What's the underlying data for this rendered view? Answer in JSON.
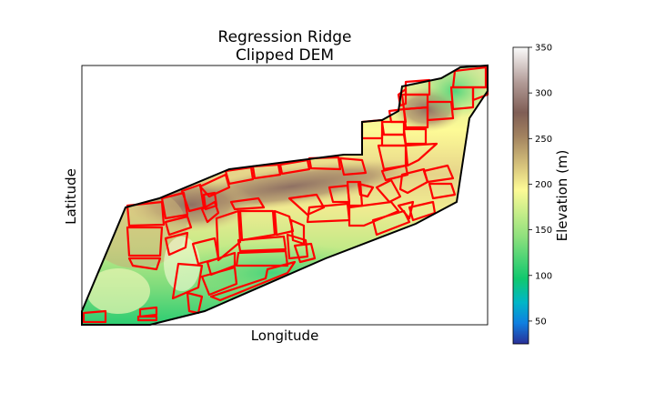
{
  "chart_data": {
    "type": "heatmap",
    "title": "Regression Ridge",
    "subtitle": "Clipped DEM",
    "xlabel": "Longitude",
    "ylabel": "Latitude",
    "colorbar": {
      "label": "Elevation (m)",
      "range": [
        25,
        350
      ],
      "ticks": [
        50,
        100,
        150,
        200,
        250,
        300,
        350
      ],
      "colormap": "terrain"
    },
    "field_outline_color": "#ff0000",
    "boundary_color": "#000000"
  }
}
